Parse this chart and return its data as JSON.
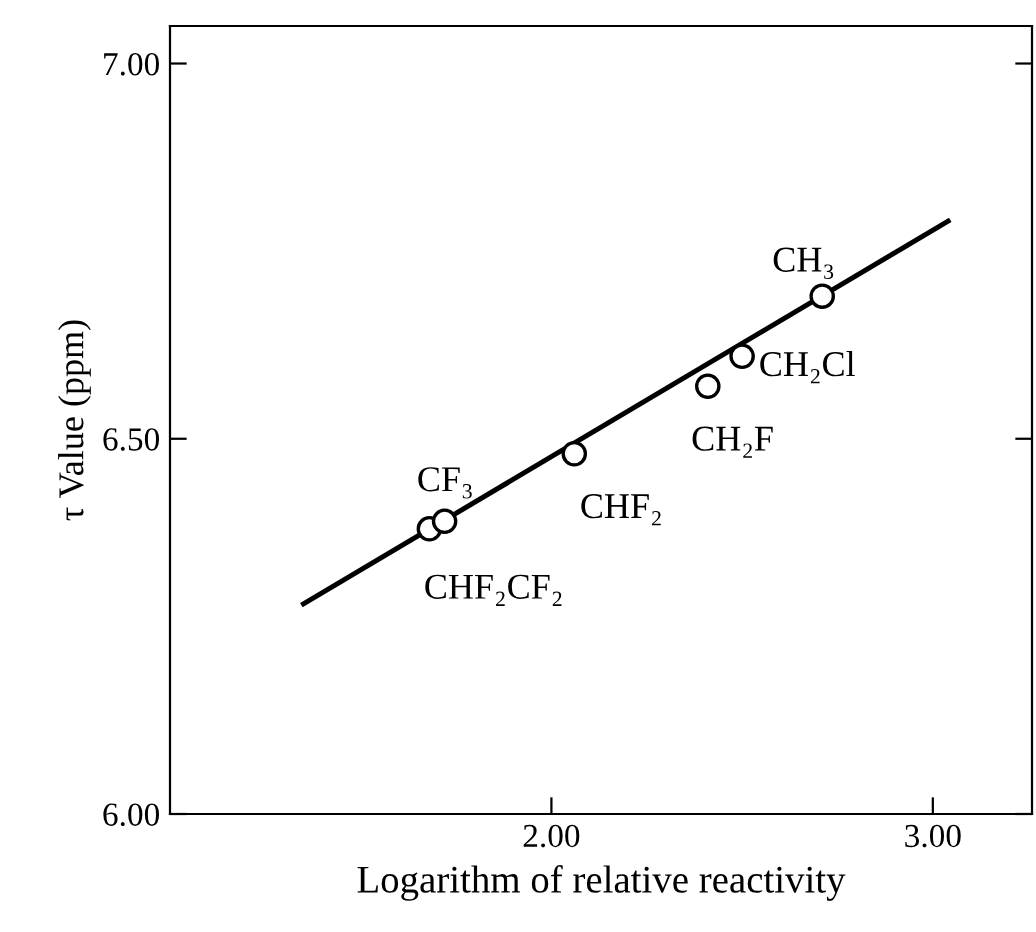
{
  "chart_data": {
    "type": "scatter",
    "xlabel": "Logarithm of relative reactivity",
    "ylabel": "τ Value (ppm)",
    "xlim": [
      1.0,
      3.26
    ],
    "ylim": [
      6.0,
      7.05
    ],
    "xticks": [
      {
        "value": 2,
        "label": "2.00"
      },
      {
        "value": 3,
        "label": "3.00"
      }
    ],
    "yticks": [
      {
        "value": 6,
        "label": "6.00"
      },
      {
        "value": 6.5,
        "label": "6.50"
      },
      {
        "value": 7,
        "label": "7.00"
      }
    ],
    "marker": "circle",
    "grid": false,
    "legend": false,
    "series": [
      {
        "color": "#000000",
        "x": [
          1.68,
          1.72,
          2.06,
          2.41,
          2.5,
          2.71
        ],
        "values": [
          6.38,
          6.39,
          6.48,
          6.57,
          6.61,
          6.69
        ]
      },
      {
        "type": "line",
        "marker": "none",
        "color": "#000000",
        "x": [
          1.35,
          3.04
        ],
        "values": [
          6.28,
          6.79
        ]
      }
    ],
    "annotations": [
      {
        "text": "CHF₂CF₂",
        "x": 1.68,
        "y": 6.38
      },
      {
        "text": "CF₃",
        "x": 1.72,
        "y": 6.39
      },
      {
        "text": "CHF₂",
        "x": 2.06,
        "y": 6.48
      },
      {
        "text": "CH₂F",
        "x": 2.41,
        "y": 6.57
      },
      {
        "text": "CH₂Cl",
        "x": 2.5,
        "y": 6.61
      },
      {
        "text": "CH₃",
        "x": 2.71,
        "y": 6.69
      }
    ]
  }
}
